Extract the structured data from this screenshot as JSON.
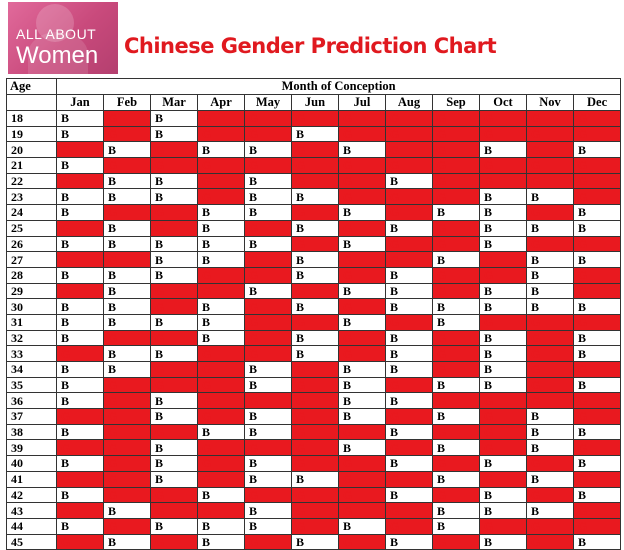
{
  "logo": {
    "line1": "ALL ABOUT",
    "line2": "Women"
  },
  "title": "Chinese Gender Prediction Chart",
  "colors": {
    "girl": "#e9191f",
    "boy": "#ffffff",
    "title": "#e0191f",
    "logo": "#c94a7c"
  },
  "table": {
    "age_header": "Age",
    "group_header": "Month of Conception",
    "months": [
      "Jan",
      "Feb",
      "Mar",
      "Apr",
      "May",
      "Jun",
      "Jul",
      "Aug",
      "Sep",
      "Oct",
      "Nov",
      "Dec"
    ],
    "rows": [
      {
        "age": "18",
        "cells": [
          "B",
          "G",
          "B",
          "G",
          "G",
          "G",
          "G",
          "G",
          "G",
          "G",
          "G",
          "G"
        ]
      },
      {
        "age": "19",
        "cells": [
          "B",
          "G",
          "B",
          "G",
          "G",
          "B",
          "G",
          "G",
          "G",
          "G",
          "G",
          "G"
        ]
      },
      {
        "age": "20",
        "cells": [
          "G",
          "B",
          "G",
          "B",
          "B",
          "G",
          "B",
          "G",
          "G",
          "B",
          "G",
          "B"
        ]
      },
      {
        "age": "21",
        "cells": [
          "B",
          "G",
          "G",
          "G",
          "G",
          "G",
          "G",
          "G",
          "G",
          "G",
          "G",
          "G"
        ]
      },
      {
        "age": "22",
        "cells": [
          "G",
          "B",
          "B",
          "G",
          "B",
          "G",
          "G",
          "B",
          "G",
          "G",
          "G",
          "G"
        ]
      },
      {
        "age": "23",
        "cells": [
          "B",
          "B",
          "B",
          "G",
          "B",
          "B",
          "G",
          "G",
          "G",
          "B",
          "B",
          "G"
        ]
      },
      {
        "age": "24",
        "cells": [
          "B",
          "G",
          "G",
          "B",
          "B",
          "G",
          "B",
          "G",
          "B",
          "B",
          "G",
          "B"
        ]
      },
      {
        "age": "25",
        "cells": [
          "G",
          "B",
          "G",
          "B",
          "G",
          "B",
          "G",
          "B",
          "G",
          "B",
          "B",
          "B"
        ]
      },
      {
        "age": "26",
        "cells": [
          "B",
          "B",
          "B",
          "B",
          "B",
          "G",
          "B",
          "G",
          "G",
          "B",
          "G",
          "G"
        ]
      },
      {
        "age": "27",
        "cells": [
          "G",
          "G",
          "B",
          "B",
          "G",
          "B",
          "G",
          "G",
          "B",
          "G",
          "B",
          "B"
        ]
      },
      {
        "age": "28",
        "cells": [
          "B",
          "B",
          "B",
          "G",
          "G",
          "B",
          "G",
          "B",
          "G",
          "G",
          "B",
          "G"
        ]
      },
      {
        "age": "29",
        "cells": [
          "G",
          "B",
          "G",
          "G",
          "B",
          "G",
          "B",
          "B",
          "G",
          "B",
          "B",
          "G"
        ]
      },
      {
        "age": "30",
        "cells": [
          "B",
          "B",
          "G",
          "B",
          "G",
          "B",
          "G",
          "B",
          "B",
          "B",
          "B",
          "B"
        ]
      },
      {
        "age": "31",
        "cells": [
          "B",
          "B",
          "B",
          "B",
          "G",
          "G",
          "B",
          "G",
          "B",
          "G",
          "G",
          "G"
        ]
      },
      {
        "age": "32",
        "cells": [
          "B",
          "G",
          "G",
          "B",
          "G",
          "B",
          "G",
          "B",
          "G",
          "B",
          "G",
          "B"
        ]
      },
      {
        "age": "33",
        "cells": [
          "G",
          "B",
          "B",
          "G",
          "G",
          "B",
          "G",
          "B",
          "G",
          "B",
          "G",
          "B"
        ]
      },
      {
        "age": "34",
        "cells": [
          "B",
          "B",
          "G",
          "G",
          "B",
          "G",
          "B",
          "B",
          "G",
          "B",
          "G",
          "G"
        ]
      },
      {
        "age": "35",
        "cells": [
          "B",
          "G",
          "G",
          "G",
          "B",
          "G",
          "B",
          "G",
          "B",
          "B",
          "G",
          "B"
        ]
      },
      {
        "age": "36",
        "cells": [
          "B",
          "G",
          "B",
          "G",
          "G",
          "G",
          "B",
          "B",
          "G",
          "G",
          "G",
          "G"
        ]
      },
      {
        "age": "37",
        "cells": [
          "G",
          "G",
          "B",
          "G",
          "B",
          "G",
          "B",
          "G",
          "B",
          "G",
          "B",
          "G"
        ]
      },
      {
        "age": "38",
        "cells": [
          "B",
          "G",
          "G",
          "B",
          "B",
          "G",
          "G",
          "B",
          "G",
          "G",
          "B",
          "B"
        ]
      },
      {
        "age": "39",
        "cells": [
          "G",
          "G",
          "B",
          "G",
          "G",
          "G",
          "B",
          "G",
          "B",
          "G",
          "B",
          "G"
        ]
      },
      {
        "age": "40",
        "cells": [
          "B",
          "G",
          "B",
          "G",
          "B",
          "G",
          "G",
          "B",
          "G",
          "B",
          "G",
          "B"
        ]
      },
      {
        "age": "41",
        "cells": [
          "G",
          "G",
          "B",
          "G",
          "B",
          "B",
          "G",
          "G",
          "B",
          "G",
          "B",
          "G"
        ]
      },
      {
        "age": "42",
        "cells": [
          "B",
          "G",
          "G",
          "B",
          "G",
          "G",
          "G",
          "B",
          "G",
          "B",
          "G",
          "B"
        ]
      },
      {
        "age": "43",
        "cells": [
          "G",
          "B",
          "G",
          "G",
          "B",
          "G",
          "G",
          "G",
          "B",
          "B",
          "B",
          "G"
        ]
      },
      {
        "age": "44",
        "cells": [
          "B",
          "G",
          "B",
          "B",
          "B",
          "G",
          "B",
          "G",
          "B",
          "G",
          "G",
          "G"
        ]
      },
      {
        "age": "45",
        "cells": [
          "G",
          "B",
          "G",
          "B",
          "G",
          "B",
          "G",
          "B",
          "G",
          "B",
          "G",
          "B"
        ]
      }
    ]
  }
}
